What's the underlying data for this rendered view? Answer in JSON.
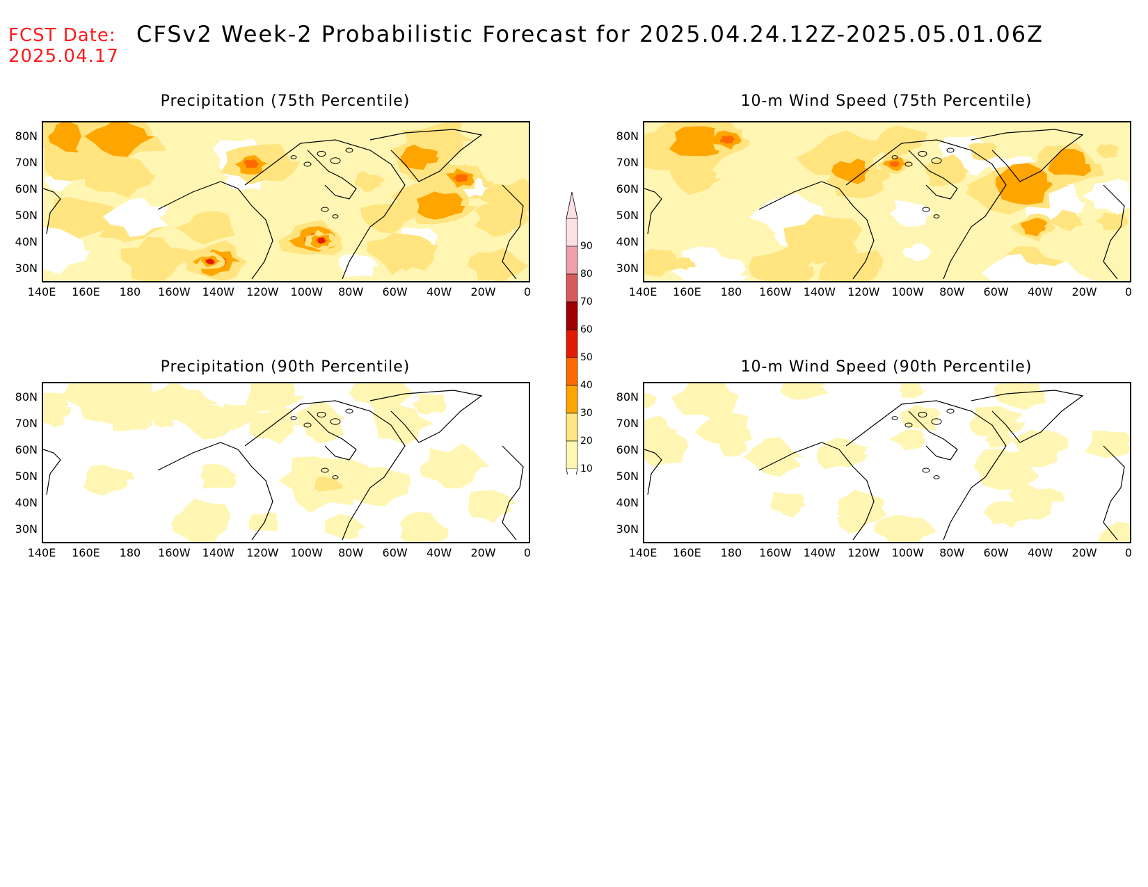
{
  "header": {
    "fcst_label": "FCST Date:",
    "fcst_date": "2025.04.17",
    "title": "CFSv2 Week-2 Probabilistic Forecast for 2025.04.24.12Z-2025.05.01.06Z"
  },
  "axes": {
    "lat_ticks": [
      "80N",
      "70N",
      "60N",
      "50N",
      "40N",
      "30N"
    ],
    "lon_ticks": [
      "140E",
      "160E",
      "180",
      "160W",
      "140W",
      "120W",
      "100W",
      "80W",
      "60W",
      "40W",
      "20W",
      "0"
    ]
  },
  "panels": [
    {
      "title": "Precipitation (75th Percentile)",
      "variable": "precip_75"
    },
    {
      "title": "10-m Wind Speed (75th Percentile)",
      "variable": "wind_75"
    },
    {
      "title": "Precipitation (90th Percentile)",
      "variable": "precip_90"
    },
    {
      "title": "10-m Wind Speed (90th Percentile)",
      "variable": "wind_90"
    }
  ],
  "colorbar": {
    "levels": [
      "10",
      "20",
      "30",
      "40",
      "50",
      "60",
      "70",
      "80",
      "90"
    ],
    "colors": [
      "#fff6b3",
      "#ffe480",
      "#ffa500",
      "#ff6a00",
      "#e01b00",
      "#a00000",
      "#d85a5a",
      "#f0a0a8",
      "#fde0e4"
    ]
  },
  "map_domain": {
    "lon_range": [
      "140E",
      "0"
    ],
    "lat_range": [
      "25N",
      "85N"
    ]
  }
}
